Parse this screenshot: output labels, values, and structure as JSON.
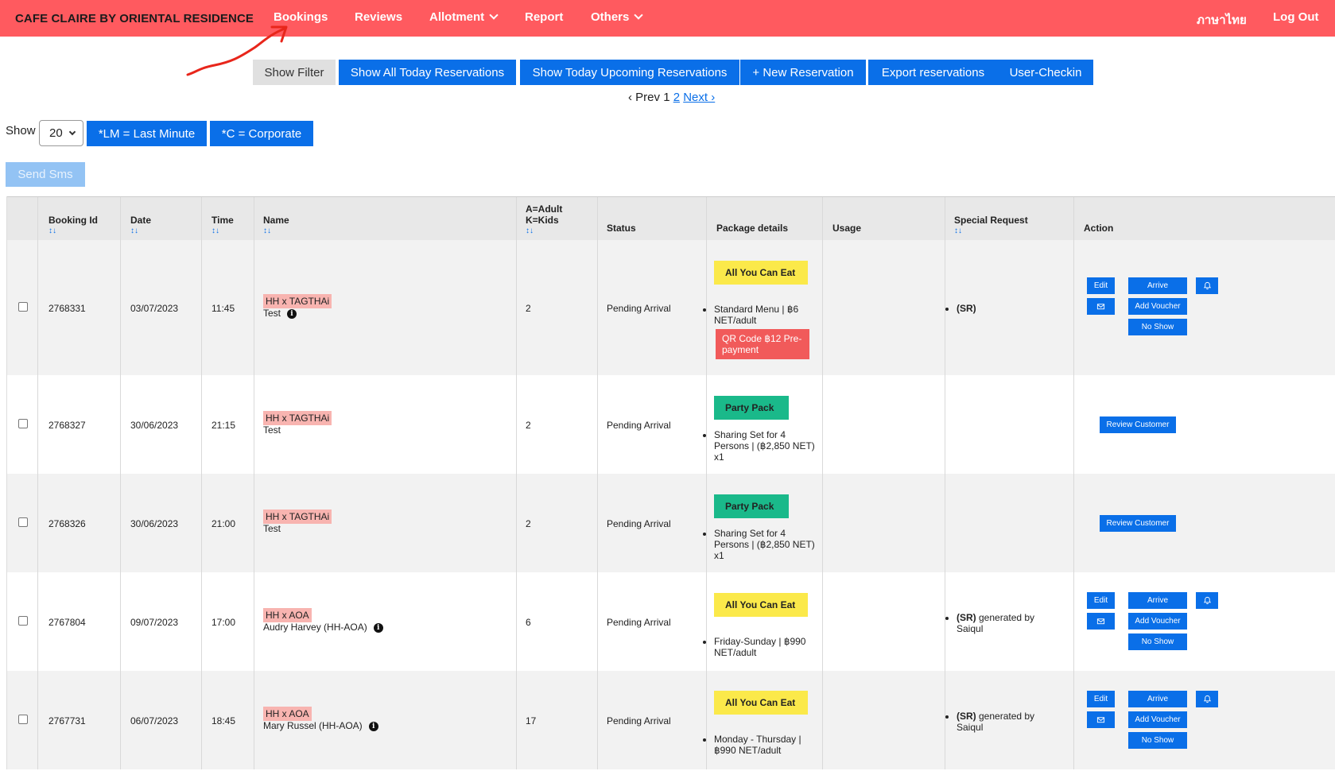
{
  "nav": {
    "brand": "CAFE CLAIRE BY ORIENTAL RESIDENCE",
    "bookings": "Bookings",
    "reviews": "Reviews",
    "allotment": "Allotment",
    "report": "Report",
    "others": "Others",
    "language": "ภาษาไทย",
    "logout": "Log Out"
  },
  "toolbar": {
    "show_filter": "Show Filter",
    "show_all_today": "Show All Today Reservations",
    "show_upcoming": "Show Today Upcoming Reservations",
    "new_reservation": "+ New Reservation",
    "export": "Export reservations",
    "user_checkin": "User-Checkin"
  },
  "pager": {
    "prev": "‹ Prev",
    "current": "1",
    "page2": "2",
    "next": "Next ›"
  },
  "controls": {
    "show_label": "Show",
    "page_size": "20",
    "lm_legend": "*LM = Last Minute",
    "c_legend": "*C = Corporate",
    "send_sms": "Send Sms"
  },
  "table": {
    "headers": {
      "booking_id": "Booking Id",
      "date": "Date",
      "time": "Time",
      "name": "Name",
      "party_line1": "A=Adult",
      "party_line2": "K=Kids",
      "status": "Status",
      "package": "Package details",
      "usage": "Usage",
      "special": "Special Request",
      "action": "Action",
      "sort": "↕↓"
    },
    "rows": [
      {
        "id": "2768331",
        "date": "03/07/2023",
        "time": "11:45",
        "tag": "HH x TAGTHAi",
        "guest": "Test",
        "party": "2",
        "status": "Pending Arrival",
        "package": "All You Can Eat",
        "package_item": "Standard Menu | ฿6 NET/adult",
        "qr": "QR Code ฿12 Pre-payment",
        "special_bold": "(SR)",
        "special_rest": ""
      },
      {
        "id": "2768327",
        "date": "30/06/2023",
        "time": "21:15",
        "tag": "HH x TAGTHAi",
        "guest": "Test",
        "party": "2",
        "status": "Pending Arrival",
        "package": "Party Pack",
        "package_item": "Sharing Set for 4 Persons | (฿2,850 NET) x1"
      },
      {
        "id": "2768326",
        "date": "30/06/2023",
        "time": "21:00",
        "tag": "HH x TAGTHAi",
        "guest": "Test",
        "party": "2",
        "status": "Pending Arrival",
        "package": "Party Pack",
        "package_item": "Sharing Set for 4 Persons | (฿2,850 NET) x1"
      },
      {
        "id": "2767804",
        "date": "09/07/2023",
        "time": "17:00",
        "tag": "HH x AOA",
        "guest": "Audry Harvey  (HH-AOA)",
        "party": "6",
        "status": "Pending Arrival",
        "package": "All You Can Eat",
        "package_item": "Friday-Sunday | ฿990 NET/adult",
        "special_bold": "(SR)",
        "special_rest": " generated by Saiqul"
      },
      {
        "id": "2767731",
        "date": "06/07/2023",
        "time": "18:45",
        "tag": "HH x AOA",
        "guest": "Mary Russel  (HH-AOA)",
        "party": "17",
        "status": "Pending Arrival",
        "package": "All You Can Eat",
        "package_item": "Monday - Thursday | ฿990 NET/adult",
        "special_bold": "(SR)",
        "special_rest": " generated by Saiqul"
      }
    ],
    "actions": {
      "edit": "Edit",
      "arrive": "Arrive",
      "add_voucher": "Add Voucher",
      "no_show": "No Show",
      "review_customer": "Review Customer"
    }
  },
  "colors": {
    "nav_bg": "#ff5a5f",
    "primary": "#0a6fe8",
    "yellow": "#fbe94a",
    "green": "#1ab98a",
    "tag": "#f8b4b0",
    "annotation": "#e8261b"
  },
  "icons": [
    "bell-icon",
    "envelope-icon",
    "info-icon",
    "chevron-down-icon",
    "red-arrow-annotation"
  ]
}
